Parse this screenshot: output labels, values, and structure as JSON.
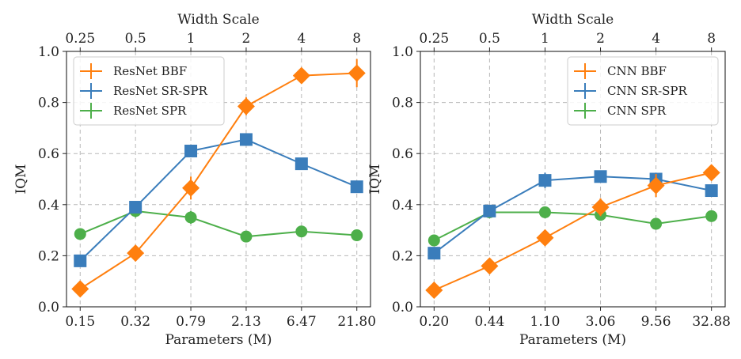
{
  "chart_data": [
    {
      "type": "line",
      "categories": [
        "0.15",
        "0.32",
        "0.79",
        "2.13",
        "6.47",
        "21.80"
      ],
      "top_axis": {
        "label": "Width Scale",
        "ticks": [
          "0.25",
          "0.5",
          "1",
          "2",
          "4",
          "8"
        ]
      },
      "xlabel": "Parameters (M)",
      "ylabel": "IQM",
      "ylim": [
        0,
        1.0
      ],
      "yticks": [
        "0.0",
        "0.2",
        "0.4",
        "0.6",
        "0.8",
        "1.0"
      ],
      "grid": true,
      "legend_position": "upper-left",
      "series": [
        {
          "name": "ResNet BBF",
          "color": "#ff7f0e",
          "marker": "diamond",
          "values": [
            0.07,
            0.21,
            0.465,
            0.785,
            0.905,
            0.915
          ],
          "error": [
            0.012,
            0.015,
            0.045,
            0.035,
            0.022,
            0.055
          ]
        },
        {
          "name": "ResNet SR-SPR",
          "color": "#3a7dbb",
          "marker": "square",
          "values": [
            0.18,
            0.39,
            0.61,
            0.655,
            0.56,
            0.47
          ],
          "error": [
            0.01,
            0.015,
            0.018,
            0.02,
            0.015,
            0.015
          ]
        },
        {
          "name": "ResNet SPR",
          "color": "#4daf4a",
          "marker": "circle",
          "values": [
            0.285,
            0.375,
            0.35,
            0.275,
            0.295,
            0.28
          ],
          "error": [
            0.01,
            0.025,
            0.025,
            0.012,
            0.01,
            0.01
          ]
        }
      ]
    },
    {
      "type": "line",
      "categories": [
        "0.20",
        "0.44",
        "1.10",
        "3.06",
        "9.56",
        "32.88"
      ],
      "top_axis": {
        "label": "Width Scale",
        "ticks": [
          "0.25",
          "0.5",
          "1",
          "2",
          "4",
          "8"
        ]
      },
      "xlabel": "Parameters (M)",
      "ylabel": "IQM",
      "ylim": [
        0,
        1.0
      ],
      "yticks": [
        "0.0",
        "0.2",
        "0.4",
        "0.6",
        "0.8",
        "1.0"
      ],
      "grid": true,
      "legend_position": "upper-right",
      "series": [
        {
          "name": "CNN BBF",
          "color": "#ff7f0e",
          "marker": "diamond",
          "values": [
            0.065,
            0.16,
            0.27,
            0.39,
            0.475,
            0.525
          ],
          "error": [
            0.01,
            0.012,
            0.015,
            0.035,
            0.045,
            0.02
          ]
        },
        {
          "name": "CNN SR-SPR",
          "color": "#3a7dbb",
          "marker": "square",
          "values": [
            0.21,
            0.375,
            0.495,
            0.51,
            0.5,
            0.455
          ],
          "error": [
            0.012,
            0.015,
            0.03,
            0.02,
            0.02,
            0.02
          ]
        },
        {
          "name": "CNN SPR",
          "color": "#4daf4a",
          "marker": "circle",
          "values": [
            0.26,
            0.37,
            0.37,
            0.36,
            0.325,
            0.355
          ],
          "error": [
            0.01,
            0.015,
            0.012,
            0.012,
            0.01,
            0.01
          ]
        }
      ]
    }
  ]
}
